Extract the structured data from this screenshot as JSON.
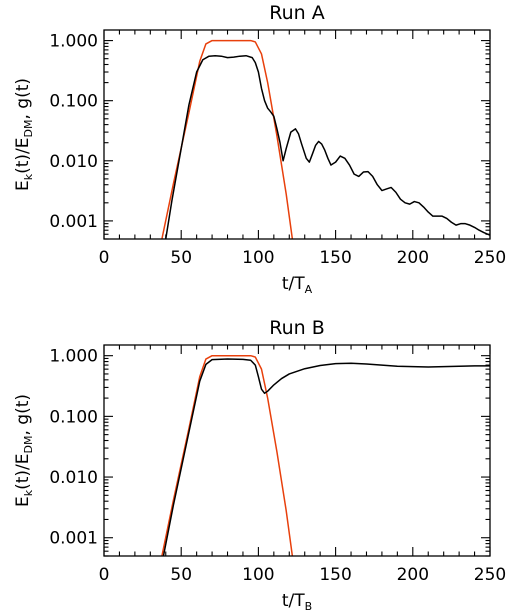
{
  "colors": {
    "g": "#e8400c",
    "ek": "#000000"
  },
  "chart_data": [
    {
      "type": "line",
      "title": "Run A",
      "xlabel": {
        "main": "t/T",
        "sub": "A"
      },
      "ylabel": {
        "part1": "E",
        "sub1": "k",
        "part2": "(t)/E",
        "sub2": "DM",
        "part3": ", g(t)"
      },
      "xlim": [
        0,
        250
      ],
      "ylim": [
        0.0005,
        1.5
      ],
      "yscale": "log",
      "xticks": [
        0,
        50,
        100,
        150,
        200,
        250
      ],
      "xtick_labels": [
        "0",
        "50",
        "100",
        "150",
        "200",
        "250"
      ],
      "yticks": [
        0.001,
        0.01,
        0.1,
        1
      ],
      "ytick_labels": [
        "0.001",
        "0.010",
        "0.100",
        "1.000"
      ],
      "series": [
        {
          "key": "g",
          "color": "#e8400c",
          "x": [
            37.5,
            45,
            55,
            62,
            66,
            70,
            75,
            85,
            95,
            98,
            102,
            106,
            112,
            118,
            122
          ],
          "y": [
            0.0005,
            0.0042,
            0.063,
            0.45,
            0.88,
            1.0,
            1.0,
            1.0,
            1.0,
            0.95,
            0.6,
            0.2,
            0.026,
            0.0028,
            0.0005
          ]
        },
        {
          "key": "ek",
          "color": "#000000",
          "x": [
            40,
            44,
            50,
            55,
            60,
            64,
            68,
            72,
            76,
            80,
            84,
            88,
            92,
            96,
            98,
            100,
            102,
            104,
            106,
            108,
            110,
            112,
            114,
            116,
            118,
            121,
            124,
            126,
            128,
            131,
            133,
            135,
            137,
            139,
            141,
            143,
            145,
            147,
            150,
            153,
            156,
            159,
            162,
            165,
            168,
            171,
            174,
            177,
            180,
            183,
            186,
            189,
            192,
            195,
            198,
            201,
            204,
            207,
            210,
            213,
            216,
            219,
            222,
            225,
            228,
            231,
            234,
            237,
            240,
            243,
            246,
            250
          ],
          "y": [
            0.0005,
            0.0022,
            0.016,
            0.085,
            0.3,
            0.48,
            0.55,
            0.56,
            0.55,
            0.52,
            0.53,
            0.55,
            0.56,
            0.52,
            0.43,
            0.3,
            0.16,
            0.1,
            0.075,
            0.065,
            0.055,
            0.034,
            0.02,
            0.01,
            0.016,
            0.03,
            0.034,
            0.028,
            0.019,
            0.011,
            0.0095,
            0.013,
            0.018,
            0.021,
            0.019,
            0.015,
            0.011,
            0.0085,
            0.0095,
            0.012,
            0.011,
            0.0085,
            0.006,
            0.0055,
            0.0065,
            0.0066,
            0.0055,
            0.004,
            0.0032,
            0.0034,
            0.0036,
            0.003,
            0.0023,
            0.002,
            0.0019,
            0.0021,
            0.002,
            0.0017,
            0.0014,
            0.0012,
            0.0012,
            0.0012,
            0.0011,
            0.00095,
            0.00085,
            0.0009,
            0.0009,
            0.00085,
            0.00078,
            0.0007,
            0.00064,
            0.00058
          ]
        }
      ]
    },
    {
      "type": "line",
      "title": "Run B",
      "xlabel": {
        "main": "t/T",
        "sub": "B"
      },
      "ylabel": {
        "part1": "E",
        "sub1": "k",
        "part2": "(t)/E",
        "sub2": "DM",
        "part3": ", g(t)"
      },
      "xlim": [
        0,
        250
      ],
      "ylim": [
        0.0005,
        1.5
      ],
      "yscale": "log",
      "xticks": [
        0,
        50,
        100,
        150,
        200,
        250
      ],
      "xtick_labels": [
        "0",
        "50",
        "100",
        "150",
        "200",
        "250"
      ],
      "yticks": [
        0.001,
        0.01,
        0.1,
        1
      ],
      "ytick_labels": [
        "0.001",
        "0.010",
        "0.100",
        "1.000"
      ],
      "series": [
        {
          "key": "g",
          "color": "#e8400c",
          "x": [
            37.5,
            45,
            55,
            62,
            66,
            70,
            75,
            85,
            95,
            98,
            102,
            106,
            112,
            118,
            122
          ],
          "y": [
            0.0005,
            0.0042,
            0.063,
            0.45,
            0.88,
            1.0,
            1.0,
            1.0,
            1.0,
            0.95,
            0.6,
            0.2,
            0.026,
            0.0028,
            0.0005
          ]
        },
        {
          "key": "ek",
          "color": "#000000",
          "x": [
            38.5,
            45,
            55,
            62,
            66,
            70,
            80,
            90,
            95,
            98,
            100,
            102,
            104,
            106,
            110,
            115,
            120,
            130,
            140,
            150,
            160,
            170,
            180,
            190,
            200,
            210,
            220,
            230,
            240,
            250
          ],
          "y": [
            0.0005,
            0.0035,
            0.055,
            0.38,
            0.72,
            0.86,
            0.88,
            0.87,
            0.84,
            0.7,
            0.45,
            0.28,
            0.24,
            0.26,
            0.33,
            0.42,
            0.5,
            0.61,
            0.69,
            0.74,
            0.75,
            0.73,
            0.7,
            0.67,
            0.66,
            0.65,
            0.66,
            0.67,
            0.68,
            0.68
          ]
        }
      ]
    }
  ]
}
